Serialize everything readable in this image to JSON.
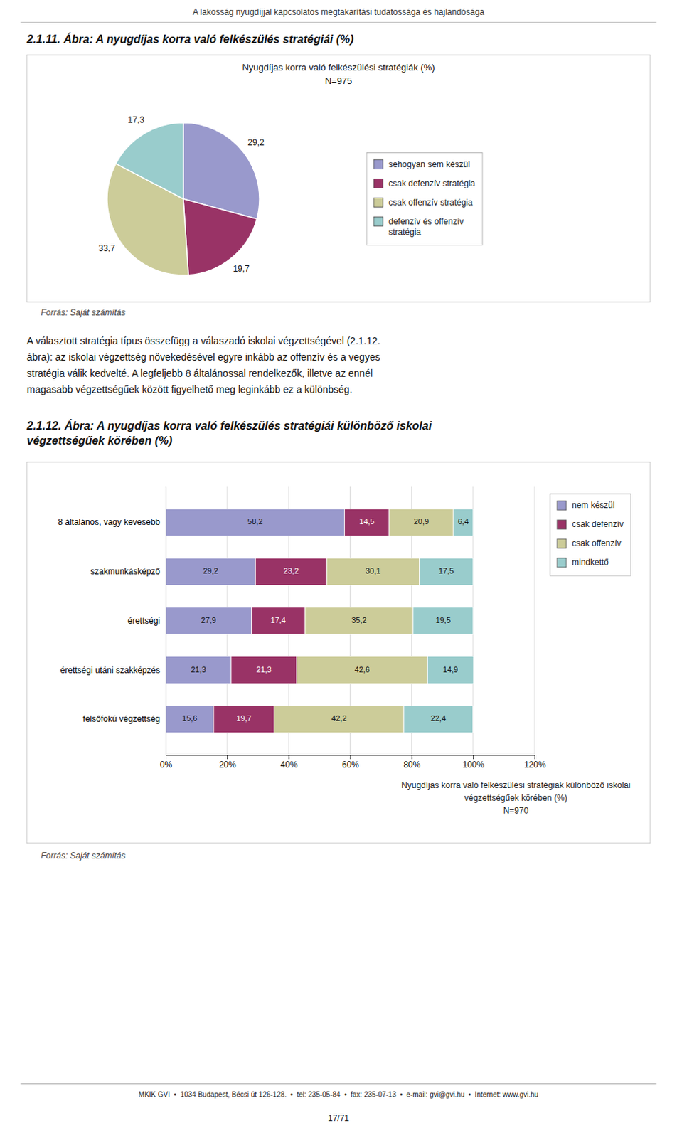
{
  "title": "A lakosság nyugdíjjal kapcsolatos megtakarítási tudatossága és hajlandósága",
  "text": "A választott stratégia típus összefügg a válaszadó iskolai végzettségével (2.1.12.\nábra): az iskolai végzettség növekedésével egyre inkább az offenzív és a vegyes\nstratégia válik kedvelté. A legfeljebb 8 általánossal rendelkezők, illetve az ennél\nmagasabb végzettségűek között figyelhető meg leginkább ez a különbség.",
  "footer": "MKIK GVI  •  1034 Budapest, Bécsi út 126-128.  •  tel: 235-05-84  •  fax: 235-07-13  •  e-mail: gvi@gvi.hu  •  Internet: www.gvi.hu",
  "page_number": "17/71",
  "chart_data": [
    {
      "type": "pie",
      "title": "2.1.11. Ábra: A nyugdíjas korra való felkészülés stratégiái (%)",
      "subtitle": "Nyugdíjas korra való felkészülési stratégiák (%)\nN=975",
      "categories": [
        "sehogyan sem készül",
        "csak defenzív stratégia",
        "csak offenzív stratégia",
        "defenzív és offenzív\nstratégia"
      ],
      "values": [
        29.2,
        19.7,
        33.7,
        17.3
      ],
      "value_labels": [
        "29,2",
        "19,7",
        "33,7",
        "17,3"
      ],
      "colors": [
        "#9999CC",
        "#993366",
        "#CCCC99",
        "#99CCCC"
      ],
      "legend": "right",
      "data_labels": true,
      "annotations": [
        "Forrás: Saját számítás"
      ]
    },
    {
      "type": "bar",
      "orientation": "horizontal",
      "stacked": true,
      "title": "2.1.12. Ábra: A nyugdíjas korra való felkészülés stratégiái különböző iskolai\nvégzettségűek körében (%)",
      "categories": [
        "8 általános, vagy kevesebb",
        "szakmunkásképző",
        "érettségi",
        "érettségi utáni szakképzés",
        "felsőfokú végzettség"
      ],
      "series": [
        {
          "name": "nem készül",
          "color": "#9999CC",
          "values": [
            58.2,
            29.2,
            27.9,
            21.3,
            15.6
          ],
          "value_labels": [
            "58,2",
            "29,2",
            "27,9",
            "21,3",
            "15,6"
          ]
        },
        {
          "name": "csak defenzív",
          "color": "#993366",
          "values": [
            14.5,
            23.2,
            17.4,
            21.3,
            19.7
          ],
          "value_labels": [
            "14,5",
            "23,2",
            "17,4",
            "21,3",
            "19,7"
          ]
        },
        {
          "name": "csak offenzív",
          "color": "#CCCC99",
          "values": [
            20.9,
            30.1,
            35.2,
            42.6,
            42.2
          ],
          "value_labels": [
            "20,9",
            "30,1",
            "35,2",
            "42,6",
            "42,2"
          ]
        },
        {
          "name": "mindkettő",
          "color": "#99CCCC",
          "values": [
            6.4,
            17.5,
            19.5,
            14.9,
            22.4
          ],
          "value_labels": [
            "6,4",
            "17,5",
            "19,5",
            "14,9",
            "22,4"
          ]
        }
      ],
      "xlabel": "Nyugdíjas korra való felkészülési stratégiak különböző iskolai\nvégzettségűek körében (%)\nN=970",
      "xlim": [
        0,
        120
      ],
      "xticks": [
        {
          "value": 0,
          "label": "0%"
        },
        {
          "value": 20,
          "label": "20%"
        },
        {
          "value": 40,
          "label": "40%"
        },
        {
          "value": 60,
          "label": "60%"
        },
        {
          "value": 80,
          "label": "80%"
        },
        {
          "value": 100,
          "label": "100%"
        },
        {
          "value": 120,
          "label": "120%"
        }
      ],
      "grid": true,
      "legend": "right",
      "data_labels": true,
      "annotations": [
        "Forrás: Saját számítás"
      ]
    }
  ]
}
